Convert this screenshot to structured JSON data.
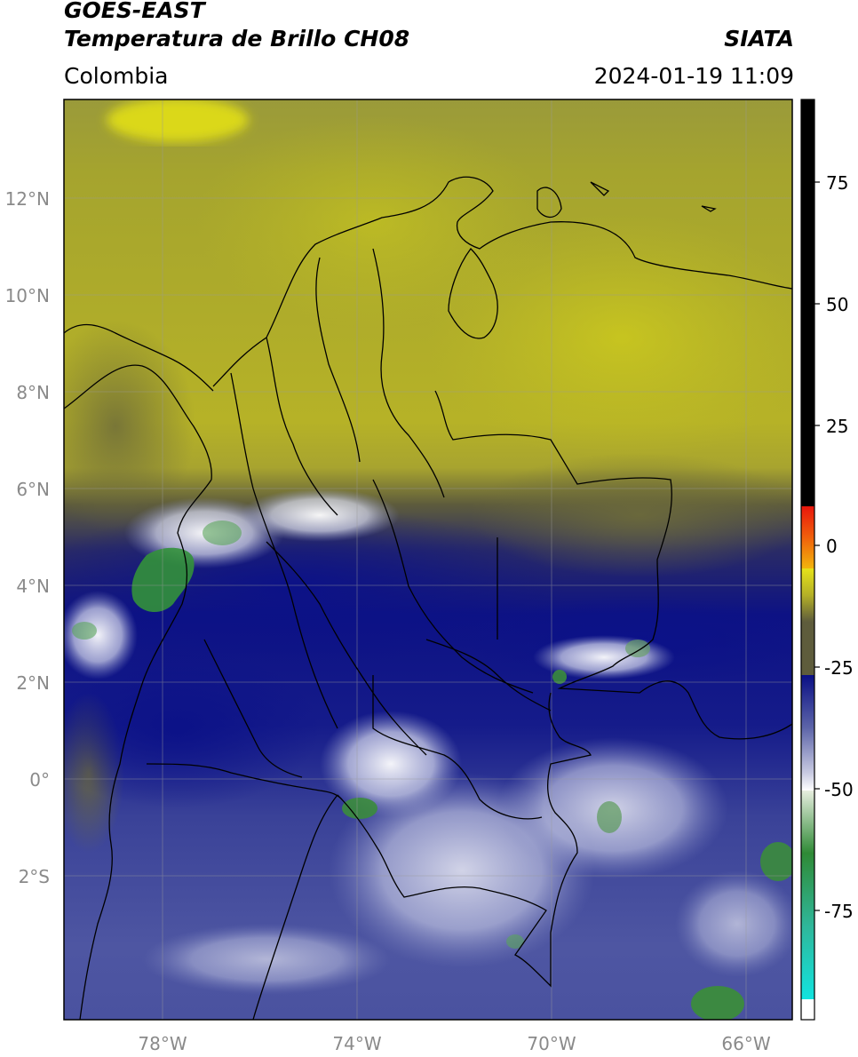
{
  "header": {
    "satellite": "GOES-EAST",
    "product": "Temperatura de Brillo CH08",
    "region": "Colombia",
    "source": "SIATA",
    "datetime": "2024-01-19 11:09"
  },
  "map": {
    "lat_ticks": [
      "12°N",
      "10°N",
      "8°N",
      "6°N",
      "4°N",
      "2°N",
      "0°",
      "2°S"
    ],
    "lon_ticks": [
      "78°W",
      "74°W",
      "70°W",
      "66°W"
    ]
  },
  "colorbar": {
    "ticks": [
      "75",
      "50",
      "25",
      "0",
      "-25",
      "-50",
      "-75"
    ],
    "colors": {
      "black": "#000000",
      "red": "#e8160c",
      "orange": "#f29a0d",
      "yellow": "#e6e31a",
      "olive": "#b4b027",
      "dark_olive": "#5e5c3c",
      "navy": "#0a0f85",
      "blue_gray": "#5b63a8",
      "white": "#ffffff",
      "green": "#2f8a36",
      "teal": "#2fb79a",
      "cyan": "#12e3df"
    }
  }
}
